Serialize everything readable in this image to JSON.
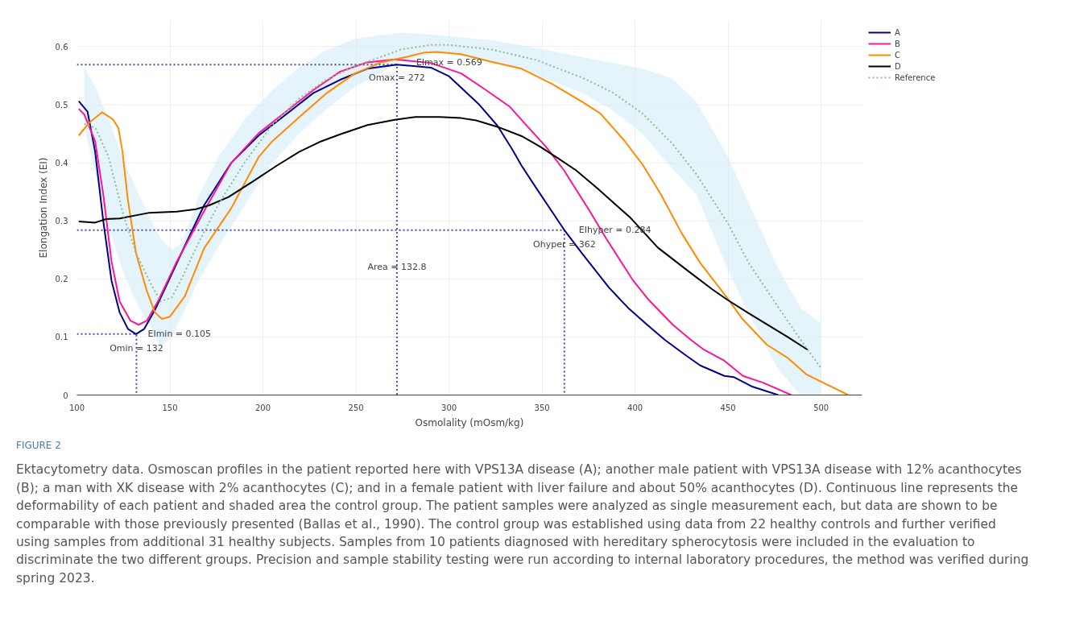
{
  "chart_data": {
    "type": "line",
    "xlabel": "Osmolality (mOsm/kg)",
    "ylabel": "Elongation Index (EI)",
    "xlim": [
      100,
      522
    ],
    "ylim": [
      0,
      0.645
    ],
    "xticks": [
      100,
      150,
      200,
      250,
      300,
      350,
      400,
      450,
      500
    ],
    "yticks": [
      0,
      0.1,
      0.2,
      0.3,
      0.4,
      0.5,
      0.6
    ],
    "grid": true,
    "legend": "top right",
    "line_style": "solid",
    "marker": "none",
    "series": [
      {
        "name": null,
        "type": "line",
        "line_style": "dotted",
        "color": "#4b4baf",
        "x": [
          100,
          132,
          132
        ],
        "values": [
          0.105,
          0.105,
          0
        ]
      },
      {
        "name": null,
        "type": "line",
        "line_style": "dotted",
        "color": "#4b4baf",
        "x": [
          100,
          272,
          272
        ],
        "values": [
          0.569,
          0.569,
          0
        ]
      },
      {
        "name": null,
        "type": "line",
        "line_style": "dotted",
        "color": "#4b4baf",
        "x": [
          100,
          362,
          362
        ],
        "values": [
          0.284,
          0.284,
          0
        ]
      },
      {
        "name": "A",
        "color": "#00008b",
        "x": [
          101,
          105.7,
          109.8,
          114.2,
          118.6,
          123,
          127.4,
          131.8,
          136.2,
          142,
          149.3,
          158,
          168.4,
          183,
          197.7,
          212.3,
          227,
          241.5,
          256,
          272,
          290.2,
          300,
          316.3,
          326,
          334,
          339,
          347,
          361.8,
          371.5,
          386,
          396,
          406.5,
          416,
          427,
          435,
          448,
          453,
          462.6,
          477
        ],
        "values": [
          0.506,
          0.488,
          0.419,
          0.299,
          0.197,
          0.142,
          0.114,
          0.105,
          0.114,
          0.147,
          0.197,
          0.257,
          0.327,
          0.4,
          0.447,
          0.483,
          0.52,
          0.543,
          0.562,
          0.569,
          0.564,
          0.549,
          0.5,
          0.464,
          0.423,
          0.395,
          0.356,
          0.285,
          0.244,
          0.185,
          0.151,
          0.121,
          0.095,
          0.069,
          0.051,
          0.033,
          0.031,
          0.015,
          0
        ]
      },
      {
        "name": "B",
        "color": "#ff1493",
        "x": [
          101,
          104,
          109.8,
          114.2,
          118.6,
          123,
          128.8,
          133.2,
          137.6,
          143.5,
          153.7,
          168.4,
          183,
          197.7,
          212.3,
          227,
          241.5,
          256,
          271,
          290,
          306.5,
          319.5,
          332.5,
          342.3,
          352,
          361.8,
          374.8,
          384.6,
          399,
          407.3,
          420.3,
          430,
          436.6,
          448,
          458,
          469,
          484
        ],
        "values": [
          0.493,
          0.483,
          0.437,
          0.345,
          0.23,
          0.161,
          0.128,
          0.121,
          0.128,
          0.161,
          0.23,
          0.317,
          0.4,
          0.451,
          0.488,
          0.525,
          0.557,
          0.573,
          0.578,
          0.572,
          0.554,
          0.526,
          0.497,
          0.462,
          0.428,
          0.387,
          0.321,
          0.269,
          0.197,
          0.164,
          0.121,
          0.095,
          0.079,
          0.059,
          0.033,
          0.021,
          0
        ]
      },
      {
        "name": "C",
        "color": "#ff8c00",
        "x": [
          101,
          106.9,
          113.5,
          119.3,
          122.3,
          124.5,
          127.4,
          131.8,
          137.6,
          142,
          145.7,
          150,
          158,
          168.4,
          183,
          197.7,
          205,
          219.6,
          234.3,
          248.9,
          263.5,
          278,
          287,
          293.5,
          306.5,
          322.8,
          339,
          355.3,
          371.5,
          381.3,
          394.3,
          404,
          413.8,
          425,
          434.9,
          449.6,
          457.7,
          470.7,
          482,
          491.9,
          500,
          514.6
        ],
        "values": [
          0.447,
          0.47,
          0.487,
          0.475,
          0.46,
          0.419,
          0.336,
          0.244,
          0.179,
          0.142,
          0.131,
          0.135,
          0.17,
          0.253,
          0.322,
          0.41,
          0.437,
          0.479,
          0.52,
          0.553,
          0.573,
          0.583,
          0.59,
          0.591,
          0.587,
          0.574,
          0.562,
          0.536,
          0.505,
          0.485,
          0.438,
          0.397,
          0.346,
          0.279,
          0.228,
          0.167,
          0.131,
          0.087,
          0.064,
          0.036,
          0.023,
          0
        ]
      },
      {
        "name": "D",
        "color": "#000000",
        "x": [
          101,
          109.8,
          115.7,
          123,
          139,
          153.7,
          164,
          171.3,
          181.5,
          194.7,
          207.9,
          219.6,
          231.3,
          241.5,
          256.2,
          270.8,
          282,
          295,
          306.5,
          314.6,
          326,
          339,
          348.8,
          358.5,
          368.3,
          379.7,
          397.6,
          412.2,
          430,
          441.5,
          449.6,
          461,
          482,
          492.7
        ],
        "values": [
          0.299,
          0.297,
          0.303,
          0.304,
          0.314,
          0.316,
          0.32,
          0.327,
          0.341,
          0.368,
          0.396,
          0.419,
          0.437,
          0.449,
          0.465,
          0.474,
          0.479,
          0.479,
          0.477,
          0.473,
          0.462,
          0.446,
          0.428,
          0.408,
          0.387,
          0.356,
          0.305,
          0.254,
          0.21,
          0.182,
          0.164,
          0.141,
          0.1,
          0.078
        ]
      },
      {
        "name": "Reference",
        "type": "line",
        "line_style": "dotted",
        "color": "#8fbc8f",
        "x": [
          104,
          110,
          117,
          125,
          132,
          140,
          145,
          151,
          157,
          165,
          176,
          190,
          205,
          220,
          234,
          249,
          264,
          274,
          290,
          300,
          323,
          347,
          372,
          388,
          404,
          420,
          433,
          450,
          461,
          477,
          489,
          500
        ],
        "values": [
          0.467,
          0.46,
          0.41,
          0.31,
          0.243,
          0.19,
          0.161,
          0.168,
          0.205,
          0.26,
          0.328,
          0.4,
          0.465,
          0.512,
          0.543,
          0.566,
          0.583,
          0.595,
          0.603,
          0.603,
          0.595,
          0.577,
          0.546,
          0.521,
          0.485,
          0.433,
          0.38,
          0.295,
          0.228,
          0.151,
          0.095,
          0.046
        ],
        "upper": [
          0.565,
          0.53,
          0.475,
          0.405,
          0.355,
          0.3,
          0.27,
          0.25,
          0.264,
          0.34,
          0.41,
          0.474,
          0.525,
          0.566,
          0.594,
          0.613,
          0.62,
          0.624,
          0.621,
          0.618,
          0.611,
          0.598,
          0.582,
          0.572,
          0.562,
          0.545,
          0.505,
          0.41,
          0.331,
          0.218,
          0.15,
          0.123
        ],
        "lower": [
          0.462,
          0.38,
          0.29,
          0.21,
          0.16,
          0.115,
          0.082,
          0.1,
          0.14,
          0.195,
          0.255,
          0.326,
          0.4,
          0.452,
          0.492,
          0.53,
          0.556,
          0.575,
          0.586,
          0.587,
          0.575,
          0.551,
          0.52,
          0.49,
          0.45,
          0.39,
          0.345,
          0.215,
          0.141,
          0.044,
          0,
          0
        ]
      }
    ],
    "annotations": [
      {
        "text": "EImin = 0.105",
        "x": 132,
        "y": 0.105
      },
      {
        "text": "Omin = 132",
        "x": 132,
        "y": 0.105
      },
      {
        "text": "EImax = 0.569",
        "x": 272,
        "y": 0.569
      },
      {
        "text": "Omax = 272",
        "x": 272,
        "y": 0.569
      },
      {
        "text": "EIhyper = 0.284",
        "x": 362,
        "y": 0.284
      },
      {
        "text": "Ohyper = 362",
        "x": 362,
        "y": 0.284
      },
      {
        "text": "Area = 132.8",
        "x": 272,
        "y": 0.22
      },
      "FIGURE 2",
      "Ektacytometry data. Osmoscan profiles in the patient reported here with VPS13A disease (A); another male patient with VPS13A disease with 12% acanthocytes (B); a man with XK disease with 2% acanthocytes (C); and in a female patient with liver failure and about 50% acanthocytes (D). Continuous line represents the deformability of each patient and shaded area the control group. The patient samples were analyzed as single measurement each, but data are shown to be comparable with those previously presented (Ballas et al., 1990). The control group was established using data from 22 healthy controls and further verified using samples from additional 31 healthy subjects. Samples from 10 patients diagnosed with hereditary spherocytosis were included in the evaluation to discriminate the two different groups. Precision and sample stability testing were run according to internal laboratory procedures, the method was verified during spring 2023."
    ]
  }
}
